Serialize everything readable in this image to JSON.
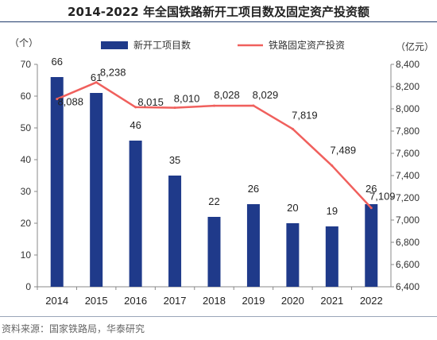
{
  "title": "2014-2022 年全国铁路新开工项目数及固定资产投资额",
  "source": "资料来源：国家铁路局，华泰研究",
  "chart_data": {
    "type": "bar",
    "categories": [
      "2014",
      "2015",
      "2016",
      "2017",
      "2018",
      "2019",
      "2020",
      "2021",
      "2022"
    ],
    "series": [
      {
        "name": "新开工项目数",
        "type": "bar",
        "axis": "left",
        "values": [
          66,
          61,
          46,
          35,
          22,
          26,
          20,
          19,
          26
        ],
        "labels": [
          "66",
          "61",
          "46",
          "35",
          "22",
          "26",
          "20",
          "19",
          "26"
        ],
        "color": "#1f3a8a"
      },
      {
        "name": "铁路固定资产投资",
        "type": "line",
        "axis": "right",
        "values": [
          8088,
          8238,
          8015,
          8010,
          8028,
          8029,
          7819,
          7489,
          7109
        ],
        "labels": [
          "8,088",
          "8,238",
          "8,015",
          "8,010",
          "8,028",
          "8,029",
          "7,819",
          "7,489",
          "7,109"
        ],
        "color": "#f0605d"
      }
    ],
    "ylabel_left": "（个）",
    "ylabel_right": "（亿元）",
    "ylim_left": [
      0,
      70
    ],
    "ylim_right": [
      6400,
      8400
    ],
    "yticks_left": [
      "0",
      "10",
      "20",
      "30",
      "40",
      "50",
      "60",
      "70"
    ],
    "yticks_right": [
      "6,400",
      "6,600",
      "6,800",
      "7,000",
      "7,200",
      "7,400",
      "7,600",
      "7,800",
      "8,000",
      "8,200",
      "8,400"
    ],
    "legend": "top",
    "grid": false
  }
}
